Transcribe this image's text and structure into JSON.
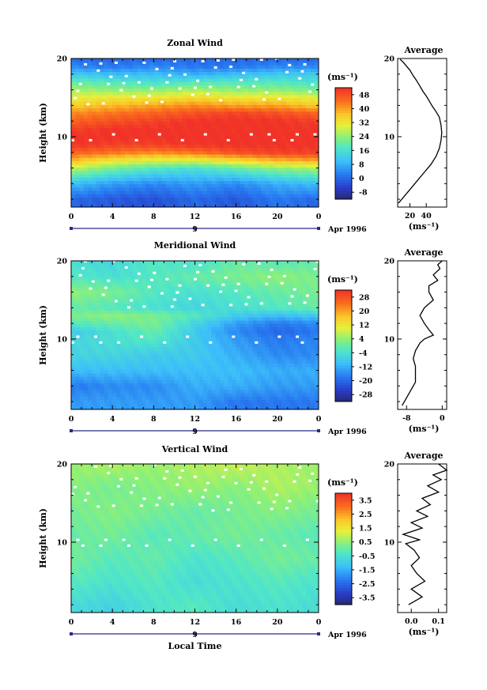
{
  "chart_data": [
    {
      "type": "heatmap",
      "title": "Zonal Wind",
      "ylabel": "Height (km)",
      "xticks": [
        "0",
        "4",
        "8",
        "12",
        "16",
        "20",
        "0"
      ],
      "yticks": [
        "10",
        "20"
      ],
      "date_axis": {
        "day": "9",
        "label": "Apr 1996"
      },
      "colorbar": {
        "unit": "(ms⁻¹)",
        "ticks": [
          "48",
          "40",
          "32",
          "24",
          "16",
          "8",
          "0",
          "-8"
        ],
        "min": -12,
        "max": 52
      },
      "rows_height_km": [
        2,
        4,
        6,
        7,
        8,
        9,
        10,
        11,
        12,
        13,
        14,
        15,
        16,
        17,
        18,
        19,
        20
      ],
      "columns_local_time": [
        0,
        4,
        8,
        12,
        16,
        20,
        24
      ],
      "values_ms": [
        [
          0,
          -2,
          -3,
          0,
          -2,
          2,
          0
        ],
        [
          10,
          6,
          4,
          6,
          4,
          8,
          10
        ],
        [
          28,
          22,
          18,
          16,
          20,
          24,
          26
        ],
        [
          38,
          32,
          30,
          30,
          34,
          38,
          40
        ],
        [
          46,
          44,
          42,
          44,
          48,
          50,
          50
        ],
        [
          52,
          50,
          50,
          52,
          52,
          52,
          52
        ],
        [
          52,
          52,
          52,
          52,
          52,
          52,
          52
        ],
        [
          50,
          52,
          52,
          52,
          52,
          52,
          52
        ],
        [
          46,
          48,
          50,
          52,
          52,
          52,
          50
        ],
        [
          42,
          44,
          46,
          48,
          50,
          48,
          46
        ],
        [
          36,
          38,
          40,
          42,
          40,
          40,
          36
        ],
        [
          30,
          32,
          32,
          34,
          32,
          32,
          30
        ],
        [
          26,
          24,
          24,
          26,
          24,
          24,
          22
        ],
        [
          20,
          18,
          16,
          18,
          18,
          18,
          16
        ],
        [
          12,
          10,
          10,
          8,
          10,
          12,
          12
        ],
        [
          4,
          2,
          4,
          2,
          2,
          4,
          4
        ],
        [
          0,
          0,
          0,
          0,
          0,
          0,
          0
        ]
      ],
      "average_profile": {
        "title": "Average",
        "xlabel": "(ms⁻¹)",
        "xticks": [
          "20",
          "40"
        ],
        "yticks": [
          "10",
          "20"
        ],
        "xlim": [
          5,
          65
        ],
        "ylim": [
          1,
          20
        ],
        "x": [
          6,
          14,
          22,
          30,
          38,
          46,
          52,
          56,
          58,
          59,
          58,
          56,
          52,
          48,
          44,
          40,
          36,
          32,
          28,
          24,
          20,
          16,
          12,
          8
        ],
        "y": [
          1.5,
          2.5,
          3.5,
          4.5,
          5.5,
          6.5,
          7.5,
          8.5,
          9.5,
          10.5,
          11.5,
          12.5,
          13.2,
          13.8,
          14.5,
          15.2,
          15.8,
          16.5,
          17.2,
          17.8,
          18.5,
          19.0,
          19.5,
          19.9
        ]
      }
    },
    {
      "type": "heatmap",
      "title": "Meridional Wind",
      "ylabel": "Height (km)",
      "xticks": [
        "0",
        "4",
        "8",
        "12",
        "16",
        "20",
        "0"
      ],
      "yticks": [
        "10",
        "20"
      ],
      "date_axis": {
        "day": "9",
        "label": "Apr 1996"
      },
      "colorbar": {
        "unit": "(ms⁻¹)",
        "ticks": [
          "28",
          "20",
          "12",
          "4",
          "-4",
          "-12",
          "-20",
          "-28"
        ],
        "min": -32,
        "max": 32
      },
      "rows_height_km": [
        2,
        4,
        6,
        8,
        10,
        11,
        12,
        13,
        14,
        16,
        18,
        20
      ],
      "columns_local_time": [
        0,
        4,
        8,
        12,
        16,
        20,
        24
      ],
      "values_ms": [
        [
          -14,
          -14,
          -14,
          -14,
          -18,
          -18,
          -18
        ],
        [
          -18,
          -16,
          -16,
          -12,
          -12,
          -14,
          -14
        ],
        [
          -10,
          -10,
          -10,
          -10,
          -10,
          -12,
          -12
        ],
        [
          -6,
          -6,
          -8,
          -8,
          -12,
          -16,
          -16
        ],
        [
          -6,
          -4,
          -2,
          -8,
          -14,
          -18,
          -16
        ],
        [
          -8,
          -4,
          0,
          -8,
          -16,
          -20,
          -18
        ],
        [
          -2,
          0,
          2,
          -6,
          -14,
          -18,
          -16
        ],
        [
          2,
          4,
          2,
          -2,
          -8,
          -10,
          -8
        ],
        [
          0,
          -2,
          -4,
          -6,
          -4,
          -2,
          0
        ],
        [
          4,
          2,
          -2,
          -4,
          -2,
          0,
          2
        ],
        [
          -2,
          -4,
          -2,
          0,
          2,
          4,
          2
        ],
        [
          -4,
          -6,
          -2,
          -4,
          0,
          -2,
          0
        ]
      ],
      "average_profile": {
        "title": "Average",
        "xlabel": "(ms⁻¹)",
        "xticks": [
          "-8",
          "0"
        ],
        "yticks": [
          "10",
          "20"
        ],
        "xlim": [
          -10,
          1
        ],
        "ylim": [
          1,
          20
        ],
        "x": [
          -9,
          -8,
          -7,
          -6,
          -6,
          -6,
          -6.5,
          -6,
          -5,
          -4,
          -2,
          -3,
          -4,
          -5,
          -4,
          -2,
          -3,
          -3,
          -1,
          -2,
          -0.5,
          -1,
          0
        ],
        "y": [
          1.5,
          2.5,
          3.5,
          4.5,
          5.5,
          6.5,
          7.5,
          8.5,
          9.5,
          10.0,
          10.5,
          11.2,
          12.0,
          13.0,
          14.0,
          15.0,
          16.0,
          16.8,
          17.5,
          18.2,
          19.0,
          19.5,
          20.0
        ]
      }
    },
    {
      "type": "heatmap",
      "title": "Vertical Wind",
      "ylabel": "Height (km)",
      "xlabel": "Local Time",
      "xticks": [
        "0",
        "4",
        "8",
        "12",
        "16",
        "20",
        "0"
      ],
      "yticks": [
        "10",
        "20"
      ],
      "date_axis": {
        "day": "9",
        "label": "Apr 1996"
      },
      "colorbar": {
        "unit": "(ms⁻¹)",
        "ticks": [
          "3.5",
          "2.5",
          "1.5",
          "0.5",
          "-0.5",
          "-1.5",
          "-2.5",
          "-3.5"
        ],
        "min": -4,
        "max": 4
      },
      "rows_height_km": [
        2,
        5,
        8,
        11,
        14,
        17,
        20
      ],
      "columns_local_time": [
        0,
        4,
        8,
        12,
        16,
        20,
        24
      ],
      "values_ms": [
        [
          -0.6,
          -0.8,
          -0.4,
          -0.2,
          -0.6,
          -0.4,
          -0.6
        ],
        [
          -0.2,
          -0.4,
          -0.2,
          -0.6,
          -0.4,
          -0.2,
          -0.4
        ],
        [
          0.2,
          -0.2,
          0,
          -0.4,
          -0.2,
          0.2,
          0
        ],
        [
          0,
          0.2,
          -0.2,
          0,
          0.2,
          0,
          -0.2
        ],
        [
          0.2,
          0.4,
          0.2,
          0,
          0.2,
          0.4,
          0.2
        ],
        [
          0.4,
          0.2,
          0.4,
          0.6,
          0.4,
          0.8,
          0.6
        ],
        [
          0.6,
          0.8,
          0.6,
          0.8,
          1.0,
          0.8,
          0.6
        ]
      ],
      "average_profile": {
        "title": "Average",
        "xlabel": "(ms⁻¹)",
        "xticks": [
          "0.0",
          "0.1"
        ],
        "yticks": [
          "10",
          "20"
        ],
        "xlim": [
          -0.05,
          0.13
        ],
        "ylim": [
          1,
          20
        ],
        "x": [
          -0.01,
          0.04,
          0.0,
          0.05,
          0.02,
          0.0,
          0.03,
          0.01,
          -0.02,
          0.03,
          -0.03,
          0.04,
          0.0,
          0.06,
          0.02,
          0.07,
          0.04,
          0.1,
          0.06,
          0.11,
          0.08,
          0.13,
          0.1
        ],
        "y": [
          2,
          3,
          4,
          5,
          6,
          7,
          8,
          9,
          9.8,
          10.3,
          11,
          11.8,
          12.5,
          13.3,
          14,
          14.8,
          15.6,
          16.4,
          17.2,
          18,
          18.6,
          19.2,
          20
        ]
      }
    }
  ]
}
